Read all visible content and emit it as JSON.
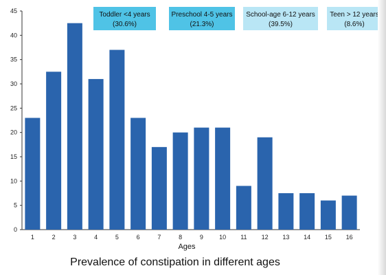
{
  "chart_data": {
    "type": "bar",
    "title": "Prevalence of constipation in different ages",
    "xlabel": "Ages",
    "ylabel": "",
    "categories": [
      "1",
      "2",
      "3",
      "4",
      "5",
      "6",
      "7",
      "8",
      "9",
      "10",
      "11",
      "12",
      "13",
      "14",
      "15",
      "16"
    ],
    "values": [
      23,
      32.5,
      42.5,
      31,
      37,
      23,
      17,
      20,
      21,
      21,
      9,
      19,
      7.5,
      7.5,
      6,
      7
    ],
    "ylim": [
      0,
      45
    ],
    "yticks": [
      0,
      5,
      10,
      15,
      20,
      25,
      30,
      35,
      40,
      45
    ],
    "grid": false,
    "bar_color": "#2a64ad",
    "age_groups": [
      {
        "label": "Toddler <4 years",
        "percent": "(30.6%)",
        "color": "#4fc3e6"
      },
      {
        "label": "Preschool 4-5 years",
        "percent": "(21.3%)",
        "color": "#4fc3e6"
      },
      {
        "label": "School-age 6-12 years",
        "percent": "(39.5%)",
        "color": "#b9e6f5"
      },
      {
        "label": "Teen > 12 years",
        "percent": "(8.6%)",
        "color": "#b9e6f5"
      }
    ]
  }
}
